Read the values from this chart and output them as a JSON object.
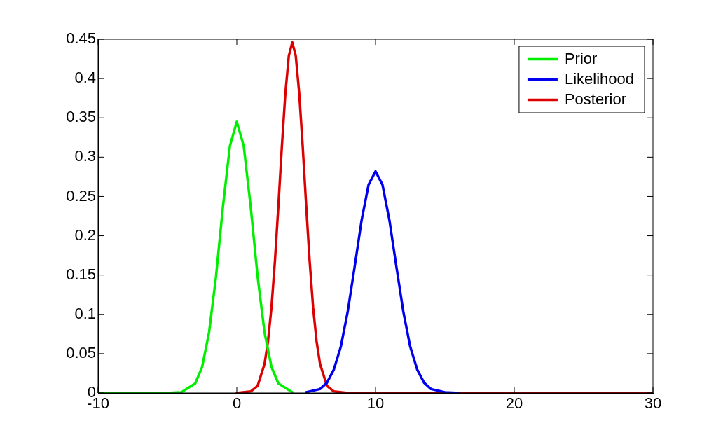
{
  "chart_data": {
    "type": "line",
    "xlim": [
      -10,
      30
    ],
    "xticks": [
      -10,
      0,
      10,
      20,
      30
    ],
    "ylim": [
      0,
      0.45
    ],
    "yticks": [
      0,
      0.05,
      0.1,
      0.15,
      0.2,
      0.25,
      0.3,
      0.35,
      0.4,
      0.45
    ],
    "grid": false,
    "legend": "top right",
    "marker": "none",
    "line_style": "solid",
    "series": [
      {
        "name": "Prior",
        "color": "#00ee00",
        "x": [
          -10,
          -5,
          -4,
          -3,
          -2.5,
          -2,
          -1.5,
          -1,
          -0.5,
          0,
          0.5,
          1,
          1.5,
          2,
          2.5,
          3,
          4
        ],
        "values": [
          0,
          0,
          0.001,
          0.012,
          0.033,
          0.077,
          0.148,
          0.237,
          0.314,
          0.345,
          0.314,
          0.237,
          0.148,
          0.077,
          0.033,
          0.012,
          0.001
        ]
      },
      {
        "name": "Likelihood",
        "color": "#0000ee",
        "x": [
          5,
          6,
          6.5,
          7,
          7.5,
          8,
          8.5,
          9,
          9.5,
          10,
          10.5,
          11,
          11.5,
          12,
          12.5,
          13,
          13.5,
          14,
          15,
          16
        ],
        "values": [
          0.001,
          0.005,
          0.013,
          0.03,
          0.059,
          0.104,
          0.161,
          0.22,
          0.265,
          0.282,
          0.265,
          0.22,
          0.161,
          0.104,
          0.059,
          0.03,
          0.013,
          0.005,
          0.001,
          0
        ]
      },
      {
        "name": "Posterior",
        "color": "#dd0000",
        "x": [
          0,
          1,
          1.5,
          2,
          2.25,
          2.5,
          2.75,
          3,
          3.25,
          3.5,
          3.75,
          4,
          4.25,
          4.5,
          4.75,
          5,
          5.25,
          5.5,
          5.75,
          6,
          6.5,
          7,
          8,
          30
        ],
        "values": [
          0,
          0.002,
          0.009,
          0.037,
          0.066,
          0.109,
          0.168,
          0.239,
          0.314,
          0.381,
          0.429,
          0.446,
          0.429,
          0.381,
          0.314,
          0.239,
          0.168,
          0.109,
          0.066,
          0.037,
          0.009,
          0.002,
          0,
          0
        ]
      }
    ]
  }
}
